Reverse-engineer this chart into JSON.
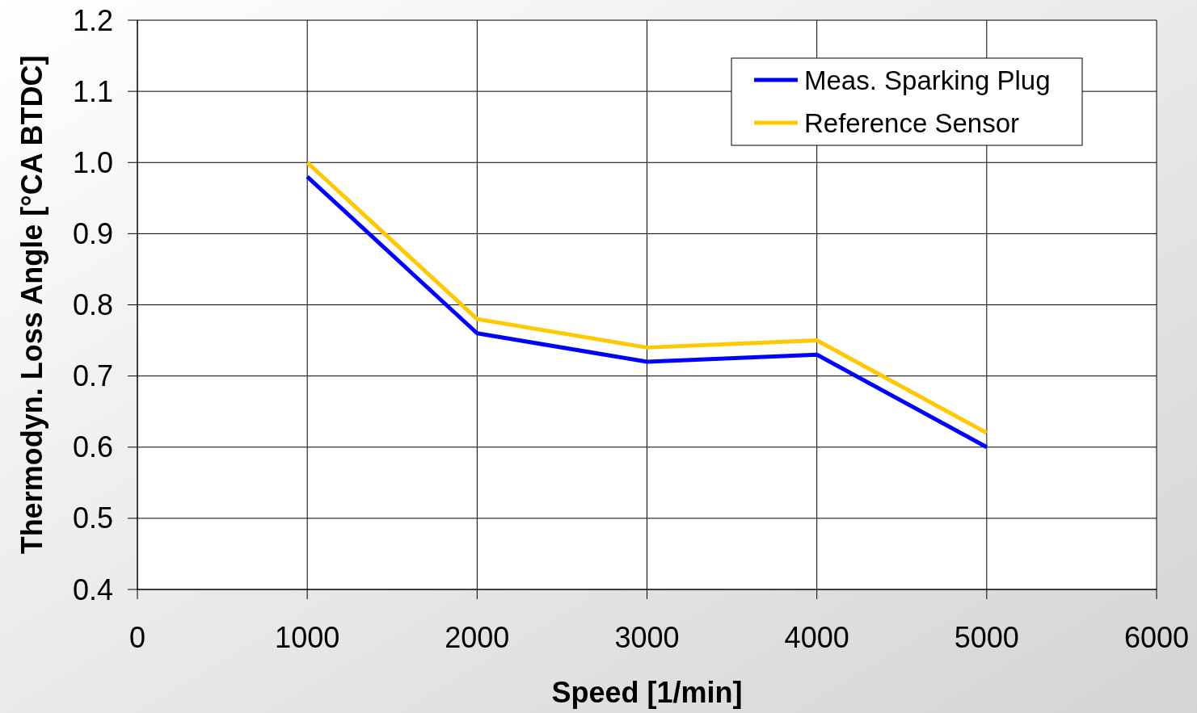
{
  "chart_data": {
    "type": "line",
    "xlabel": "Speed [1/min]",
    "ylabel": "Thermodyn. Loss Angle [°CA BTDC]",
    "x": [
      1000,
      2000,
      3000,
      4000,
      5000
    ],
    "series": [
      {
        "name": "Meas. Sparking Plug",
        "color": "#0000ff",
        "values": [
          0.98,
          0.76,
          0.72,
          0.73,
          0.6
        ]
      },
      {
        "name": "Reference Sensor",
        "color": "#ffc800",
        "values": [
          1.0,
          0.78,
          0.74,
          0.75,
          0.62
        ]
      }
    ],
    "xlim": [
      0,
      6000
    ],
    "xticks": [
      0,
      1000,
      2000,
      3000,
      4000,
      5000,
      6000
    ],
    "ylim": [
      0.4,
      1.2
    ],
    "yticks": [
      {
        "value": 0.4,
        "label": "0.4"
      },
      {
        "value": 0.5,
        "label": "0.5"
      },
      {
        "value": 0.6,
        "label": "0.6"
      },
      {
        "value": 0.7,
        "label": "0.7"
      },
      {
        "value": 0.8,
        "label": "0.8"
      },
      {
        "value": 0.9,
        "label": "0.9"
      },
      {
        "value": 1.0,
        "label": "1.0"
      },
      {
        "value": 1.1,
        "label": "1.1"
      },
      {
        "value": 1.2,
        "label": "1.2"
      }
    ],
    "grid": true,
    "legend": "top right",
    "marker": "none",
    "line_style": "solid"
  }
}
